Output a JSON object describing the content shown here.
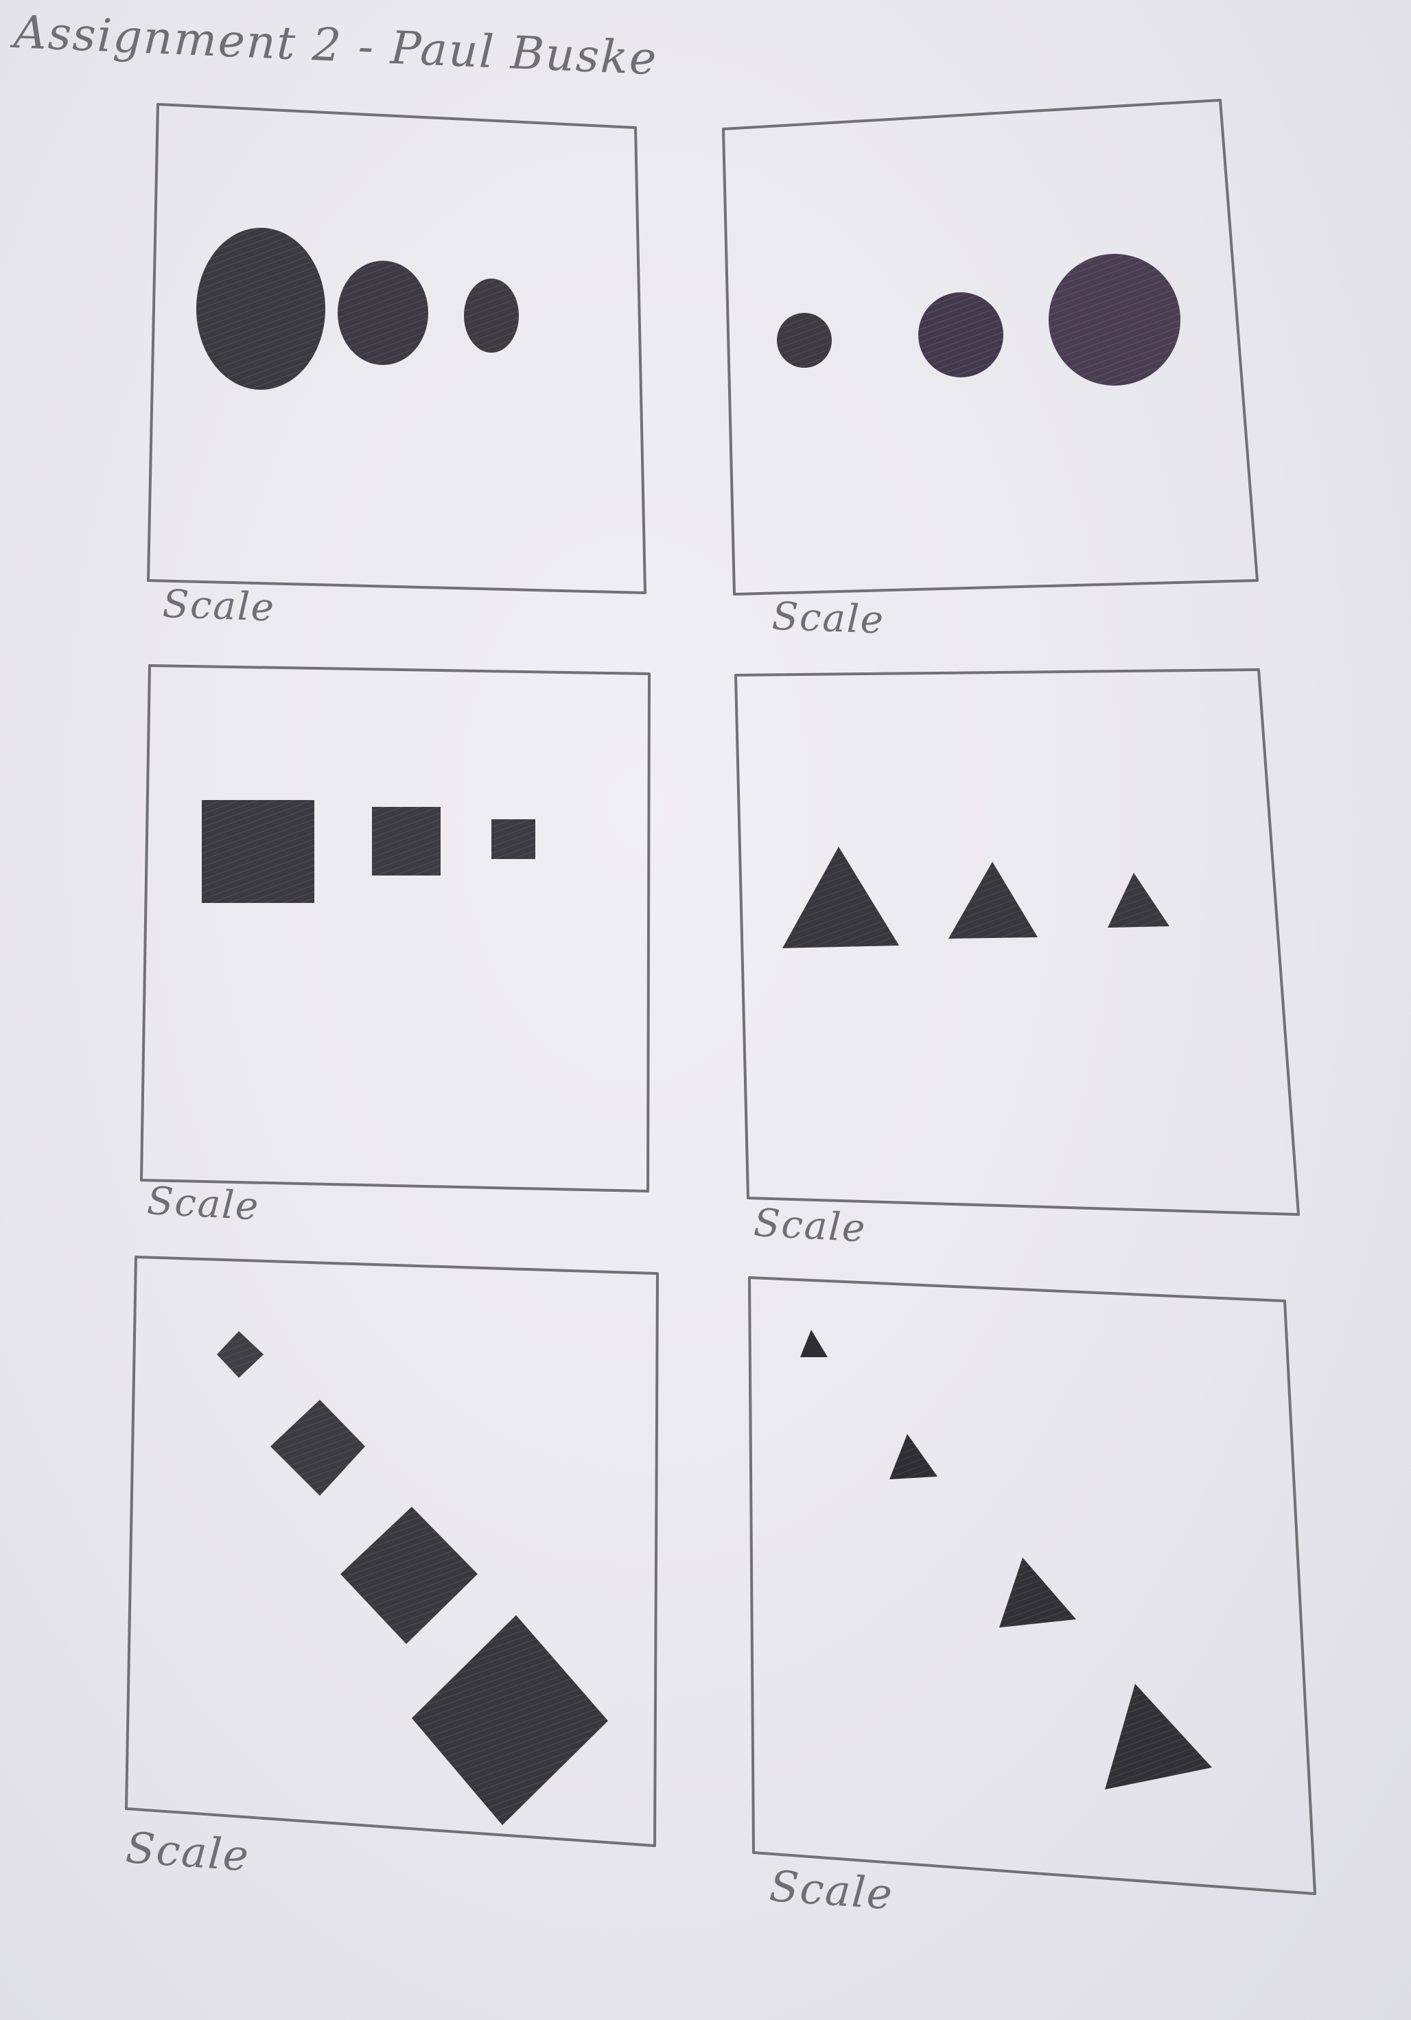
{
  "title": "Assignment 2 - Paul Buske",
  "panels": [
    {
      "label": "Scale",
      "shape": "ellipse",
      "count": 3,
      "order": "decreasing"
    },
    {
      "label": "Scale",
      "shape": "circle",
      "count": 3,
      "order": "increasing"
    },
    {
      "label": "Scale",
      "shape": "square",
      "count": 3,
      "order": "decreasing"
    },
    {
      "label": "Scale",
      "shape": "triangle",
      "count": 3,
      "order": "decreasing"
    },
    {
      "label": "Scale",
      "shape": "diamond",
      "count": 4,
      "order": "increasing"
    },
    {
      "label": "Scale",
      "shape": "triangle",
      "count": 4,
      "order": "increasing"
    }
  ],
  "colors": {
    "paper": "#e9e8ee",
    "pencil_line": "#707075",
    "shape_fill": "#3b3a40",
    "purple_tint": "#4a3f52"
  }
}
